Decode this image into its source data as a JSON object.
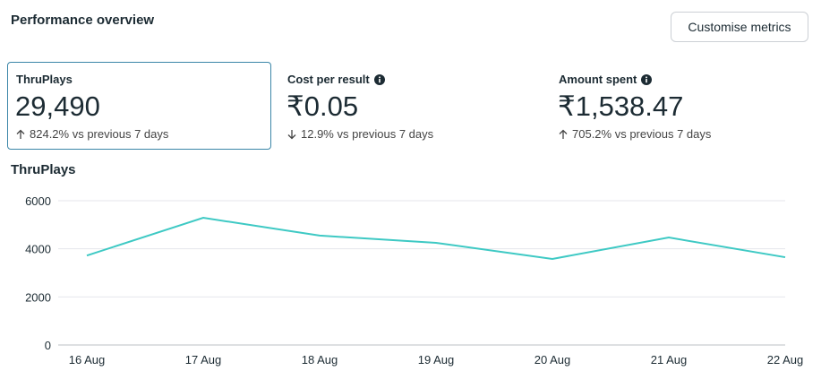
{
  "header": {
    "title": "Performance overview",
    "button": "Customise metrics"
  },
  "metrics": [
    {
      "label": "ThruPlays",
      "value": "29,490",
      "change": "824.2% vs previous 7 days",
      "direction": "up",
      "info": false,
      "selected": true
    },
    {
      "label": "Cost per result",
      "value": "₹0.05",
      "change": "12.9% vs previous 7 days",
      "direction": "down",
      "info": true,
      "selected": false
    },
    {
      "label": "Amount spent",
      "value": "₹1,538.47",
      "change": "705.2% vs previous 7 days",
      "direction": "up",
      "info": true,
      "selected": false
    }
  ],
  "chart_data": {
    "type": "line",
    "title": "ThruPlays",
    "categories": [
      "16 Aug",
      "17 Aug",
      "18 Aug",
      "19 Aug",
      "20 Aug",
      "21 Aug",
      "22 Aug"
    ],
    "values": [
      3720,
      5290,
      4550,
      4250,
      3580,
      4470,
      3650
    ],
    "color": "#3ec9c4",
    "ylim": [
      0,
      6000
    ],
    "yticks": [
      0,
      2000,
      4000,
      6000
    ],
    "grid": true
  }
}
